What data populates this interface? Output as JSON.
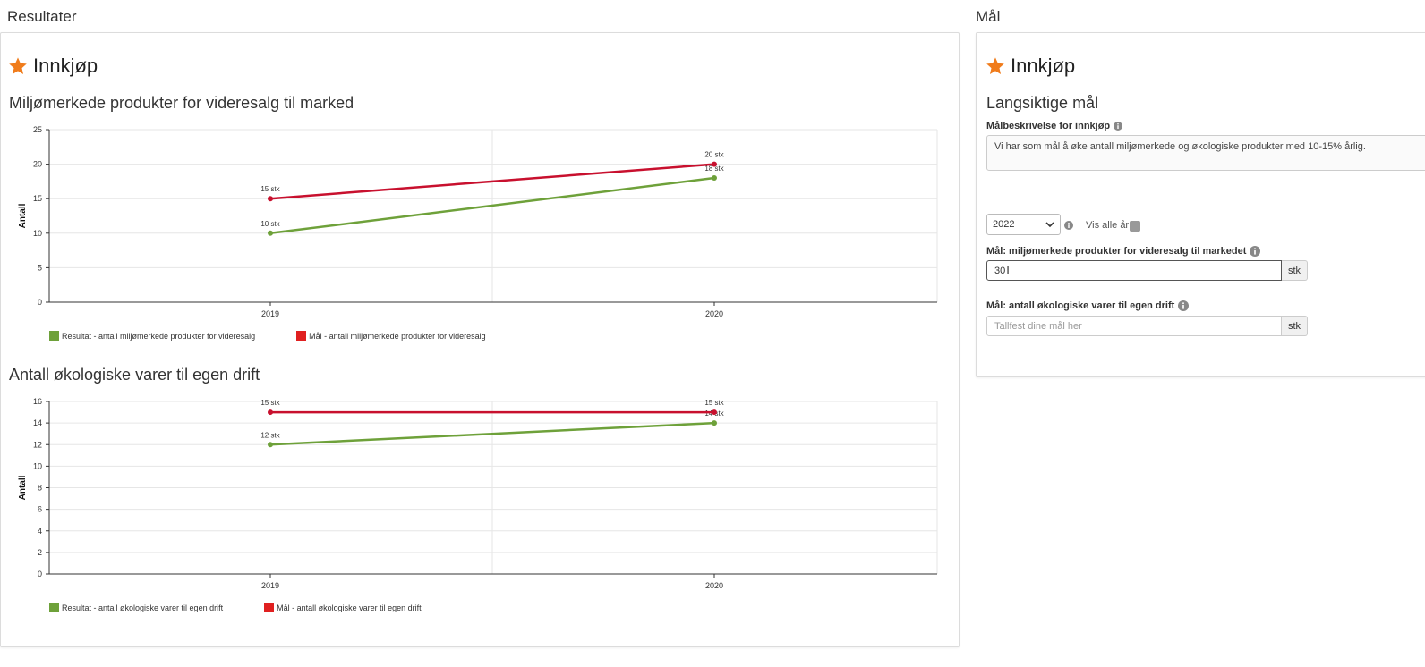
{
  "results": {
    "section_title": "Resultater",
    "panel_heading": "Innkjøp",
    "charts": [
      {
        "title": "Miljømerkede produkter for videresalg til marked",
        "ylabel": "Antall",
        "legend": [
          {
            "label": "Resultat - antall miljømerkede produkter for videresalg",
            "color": "#6ea13a"
          },
          {
            "label": "Mål - antall miljømerkede produkter for videresalg",
            "color": "#e02020"
          }
        ]
      },
      {
        "title": "Antall økologiske varer til egen drift",
        "ylabel": "Antall",
        "legend": [
          {
            "label": "Resultat - antall økologiske varer til egen drift",
            "color": "#6ea13a"
          },
          {
            "label": "Mål - antall økologiske varer til egen drift",
            "color": "#e02020"
          }
        ]
      }
    ]
  },
  "goals": {
    "section_title": "Mål",
    "panel_heading": "Innkjøp",
    "subheading": "Langsiktige mål",
    "description_label": "Målbeskrivelse for innkjøp",
    "description_value": "Vi har som mål å øke antall miljømerkede og økologiske produkter med 10-15% årlig.",
    "year_select_value": "2022",
    "show_all_years_label": "Vis alle år",
    "goal1_label": "Mål: miljømerkede produkter for videresalg til markedet",
    "goal1_value": "30",
    "goal1_unit": "stk",
    "goal2_label": "Mål: antall økologiske varer til egen drift",
    "goal2_placeholder": "Tallfest dine mål her",
    "goal2_unit": "stk"
  },
  "colors": {
    "accent_star": "#f07c1c",
    "result_series": "#6ea13a",
    "goal_series": "#c8102e"
  },
  "chart_data": [
    {
      "type": "line",
      "title": "Miljømerkede produkter for videresalg til marked",
      "xlabel": "",
      "ylabel": "Antall",
      "categories": [
        "2019",
        "2020"
      ],
      "ylim": [
        0,
        25
      ],
      "yticks": [
        0,
        5,
        10,
        15,
        20,
        25
      ],
      "grid": true,
      "legend_position": "bottom-left",
      "series": [
        {
          "name": "Resultat - antall miljømerkede produkter for videresalg",
          "values": [
            10,
            18
          ],
          "labels": [
            "10 stk",
            "18 stk"
          ],
          "color": "#6ea13a"
        },
        {
          "name": "Mål - antall miljømerkede produkter for videresalg",
          "values": [
            15,
            20
          ],
          "labels": [
            "15 stk",
            "20 stk"
          ],
          "color": "#c8102e"
        }
      ]
    },
    {
      "type": "line",
      "title": "Antall økologiske varer til egen drift",
      "xlabel": "",
      "ylabel": "Antall",
      "categories": [
        "2019",
        "2020"
      ],
      "ylim": [
        0,
        16
      ],
      "yticks": [
        0,
        2,
        4,
        6,
        8,
        10,
        12,
        14,
        16
      ],
      "grid": true,
      "legend_position": "bottom-left",
      "series": [
        {
          "name": "Resultat - antall økologiske varer til egen drift",
          "values": [
            12,
            14
          ],
          "labels": [
            "12 stk",
            "14 stk"
          ],
          "color": "#6ea13a"
        },
        {
          "name": "Mål - antall økologiske varer til egen drift",
          "values": [
            15,
            15
          ],
          "labels": [
            "15 stk",
            "15 stk"
          ],
          "color": "#c8102e"
        }
      ]
    }
  ]
}
